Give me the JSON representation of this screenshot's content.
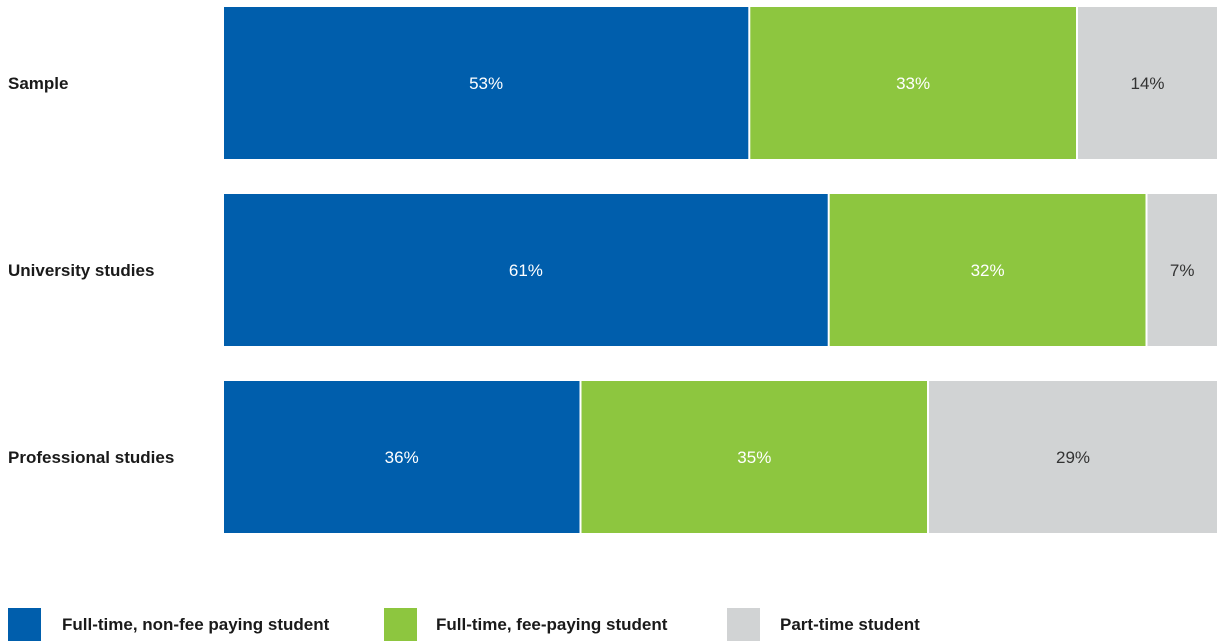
{
  "chart_data": {
    "type": "bar",
    "orientation": "horizontal",
    "stacked": true,
    "normalized_percent": true,
    "categories": [
      "Sample",
      "University studies",
      "Professional studies"
    ],
    "series": [
      {
        "name": "Full-time, non-fee paying student",
        "color": "#005EAC",
        "values": [
          53,
          61,
          36
        ],
        "labels": [
          "53%",
          "61%",
          "36%"
        ]
      },
      {
        "name": "Full-time, fee-paying student",
        "color": "#8DC63F",
        "values": [
          33,
          32,
          35
        ],
        "labels": [
          "33%",
          "32%",
          "35%"
        ]
      },
      {
        "name": "Part-time student",
        "color": "#D1D3D4",
        "values": [
          14,
          7,
          29
        ],
        "labels": [
          "14%",
          "7%",
          "29%"
        ]
      }
    ],
    "xlim": [
      0,
      100
    ],
    "grid": false,
    "legend": "bottom",
    "title": "",
    "xlabel": "",
    "ylabel": ""
  }
}
